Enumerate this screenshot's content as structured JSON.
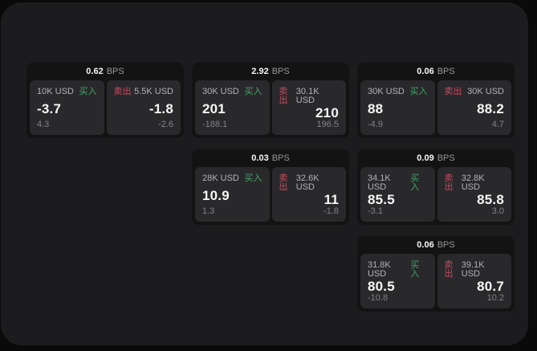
{
  "theme": {
    "page_bg": "#0a0a0b",
    "panel_bg": "#1c1c1e",
    "card_bg": "#131314",
    "tile_bg": "#29292b",
    "buy_green": "#41a56a",
    "sell_red": "#cc4960",
    "text_primary": "#f6f6f6",
    "text_secondary": "#b3b3b6",
    "text_muted": "#838387"
  },
  "labels": {
    "bps_unit": "BPS",
    "buy": "买入",
    "sell": "卖出"
  },
  "cards": [
    {
      "bps": "0.62",
      "buy": {
        "amount": "10K USD",
        "price": "-3.7",
        "delta": "4.3"
      },
      "sell": {
        "amount": "5.5K USD",
        "price": "-1.8",
        "delta": "-2.6"
      }
    },
    {
      "bps": "2.92",
      "buy": {
        "amount": "30K USD",
        "price": "201",
        "delta": "-188.1"
      },
      "sell": {
        "amount": "30.1K USD",
        "price": "210",
        "delta": "196.5"
      }
    },
    {
      "bps": "0.06",
      "buy": {
        "amount": "30K USD",
        "price": "88",
        "delta": "-4.9"
      },
      "sell": {
        "amount": "30K USD",
        "price": "88.2",
        "delta": "4.7"
      }
    },
    {
      "bps": "0.03",
      "buy": {
        "amount": "28K USD",
        "price": "10.9",
        "delta": "1.3"
      },
      "sell": {
        "amount": "32.6K USD",
        "price": "11",
        "delta": "-1.8"
      }
    },
    {
      "bps": "0.09",
      "buy": {
        "amount": "34.1K USD",
        "price": "85.5",
        "delta": "-3.1"
      },
      "sell": {
        "amount": "32.8K USD",
        "price": "85.8",
        "delta": "3.0"
      }
    },
    {
      "bps": "0.06",
      "buy": {
        "amount": "31.8K USD",
        "price": "80.5",
        "delta": "-10.8"
      },
      "sell": {
        "amount": "39.1K USD",
        "price": "80.7",
        "delta": "10.2"
      }
    }
  ]
}
